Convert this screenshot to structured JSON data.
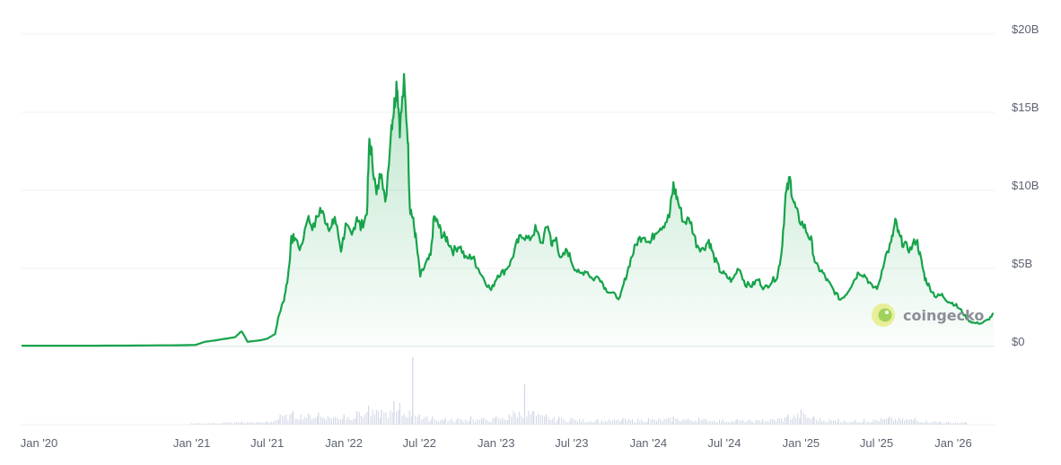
{
  "watermark": {
    "text": "coingecko",
    "icon": "coingecko-gecko-icon"
  },
  "colors": {
    "line": "#16a34a",
    "area_top": "#16a34a",
    "volume": "#cfd6e4",
    "grid": "#eef0f3",
    "axis": "#dfe3e8"
  },
  "chart_data": [
    {
      "type": "area",
      "title": "",
      "xlabel": "",
      "ylabel": "",
      "x_axis": "date",
      "xlim": [
        "2019-11-20",
        "2026-04-10"
      ],
      "ylim": [
        0,
        20000000000
      ],
      "grid": true,
      "y_ticks": [
        {
          "value": 0,
          "label": "$0"
        },
        {
          "value": 5000000000,
          "label": "$5B"
        },
        {
          "value": 10000000000,
          "label": "$10B"
        },
        {
          "value": 15000000000,
          "label": "$15B"
        },
        {
          "value": 20000000000,
          "label": "$20B"
        }
      ],
      "x_ticks": [
        {
          "value": "2020-01-01",
          "label": "Jan '20"
        },
        {
          "value": "2021-01-01",
          "label": "Jan '21"
        },
        {
          "value": "2021-07-01",
          "label": "Jul '21"
        },
        {
          "value": "2022-01-01",
          "label": "Jan '22"
        },
        {
          "value": "2022-07-01",
          "label": "Jul '22"
        },
        {
          "value": "2023-01-01",
          "label": "Jan '23"
        },
        {
          "value": "2023-07-01",
          "label": "Jul '23"
        },
        {
          "value": "2024-01-01",
          "label": "Jan '24"
        },
        {
          "value": "2024-07-01",
          "label": "Jul '24"
        },
        {
          "value": "2025-01-01",
          "label": "Jan '25"
        },
        {
          "value": "2025-07-01",
          "label": "Jul '25"
        },
        {
          "value": "2026-01-01",
          "label": "Jan '26"
        }
      ],
      "series": [
        {
          "points": [
            [
              "2019-11-20",
              50000000
            ],
            [
              "2020-04-01",
              50000000
            ],
            [
              "2020-08-01",
              60000000
            ],
            [
              "2020-12-01",
              80000000
            ],
            [
              "2021-01-10",
              100000000
            ],
            [
              "2021-02-01",
              300000000
            ],
            [
              "2021-03-01",
              400000000
            ],
            [
              "2021-04-15",
              600000000
            ],
            [
              "2021-05-01",
              1000000000
            ],
            [
              "2021-05-15",
              300000000
            ],
            [
              "2021-06-15",
              400000000
            ],
            [
              "2021-07-01",
              500000000
            ],
            [
              "2021-07-20",
              800000000
            ],
            [
              "2021-07-28",
              1900000000
            ],
            [
              "2021-08-10",
              3000000000
            ],
            [
              "2021-08-20",
              4500000000
            ],
            [
              "2021-08-28",
              6800000000
            ],
            [
              "2021-09-05",
              7000000000
            ],
            [
              "2021-09-20",
              6200000000
            ],
            [
              "2021-10-05",
              8300000000
            ],
            [
              "2021-10-20",
              7600000000
            ],
            [
              "2021-11-05",
              8800000000
            ],
            [
              "2021-11-20",
              8000000000
            ],
            [
              "2021-12-01",
              7500000000
            ],
            [
              "2021-12-10",
              8300000000
            ],
            [
              "2021-12-25",
              6200000000
            ],
            [
              "2022-01-05",
              7700000000
            ],
            [
              "2022-01-20",
              7000000000
            ],
            [
              "2022-02-01",
              8400000000
            ],
            [
              "2022-02-10",
              7600000000
            ],
            [
              "2022-02-25",
              8500000000
            ],
            [
              "2022-03-03",
              13200000000
            ],
            [
              "2022-03-10",
              12000000000
            ],
            [
              "2022-03-20",
              9600000000
            ],
            [
              "2022-04-01",
              11500000000
            ],
            [
              "2022-04-10",
              9000000000
            ],
            [
              "2022-04-25",
              14200000000
            ],
            [
              "2022-05-02",
              15500000000
            ],
            [
              "2022-05-08",
              17100000000
            ],
            [
              "2022-05-15",
              14000000000
            ],
            [
              "2022-05-25",
              16800000000
            ],
            [
              "2022-06-03",
              13500000000
            ],
            [
              "2022-06-08",
              9000000000
            ],
            [
              "2022-06-15",
              8200000000
            ],
            [
              "2022-06-22",
              7000000000
            ],
            [
              "2022-07-03",
              4500000000
            ],
            [
              "2022-07-15",
              5200000000
            ],
            [
              "2022-07-28",
              5800000000
            ],
            [
              "2022-08-05",
              8300000000
            ],
            [
              "2022-08-15",
              7800000000
            ],
            [
              "2022-08-25",
              7100000000
            ],
            [
              "2022-09-05",
              6900000000
            ],
            [
              "2022-09-20",
              6100000000
            ],
            [
              "2022-10-05",
              6500000000
            ],
            [
              "2022-10-20",
              5600000000
            ],
            [
              "2022-11-05",
              5800000000
            ],
            [
              "2022-11-15",
              5200000000
            ],
            [
              "2022-12-05",
              4200000000
            ],
            [
              "2022-12-20",
              3600000000
            ],
            [
              "2023-01-05",
              4600000000
            ],
            [
              "2023-01-20",
              4800000000
            ],
            [
              "2023-02-05",
              5400000000
            ],
            [
              "2023-02-20",
              6600000000
            ],
            [
              "2023-03-05",
              7200000000
            ],
            [
              "2023-03-20",
              6800000000
            ],
            [
              "2023-04-05",
              7500000000
            ],
            [
              "2023-04-20",
              6600000000
            ],
            [
              "2023-05-05",
              7800000000
            ],
            [
              "2023-05-15",
              6500000000
            ],
            [
              "2023-05-25",
              6900000000
            ],
            [
              "2023-06-05",
              5500000000
            ],
            [
              "2023-06-20",
              6200000000
            ],
            [
              "2023-07-05",
              5200000000
            ],
            [
              "2023-07-20",
              4600000000
            ],
            [
              "2023-08-05",
              4900000000
            ],
            [
              "2023-08-20",
              4300000000
            ],
            [
              "2023-09-05",
              4500000000
            ],
            [
              "2023-09-20",
              3700000000
            ],
            [
              "2023-10-05",
              3400000000
            ],
            [
              "2023-10-25",
              3100000000
            ],
            [
              "2023-11-05",
              4200000000
            ],
            [
              "2023-11-20",
              5600000000
            ],
            [
              "2023-12-05",
              6700000000
            ],
            [
              "2023-12-20",
              7200000000
            ],
            [
              "2024-01-05",
              6600000000
            ],
            [
              "2024-01-20",
              7500000000
            ],
            [
              "2024-02-05",
              7800000000
            ],
            [
              "2024-02-20",
              8300000000
            ],
            [
              "2024-03-01",
              10300000000
            ],
            [
              "2024-03-10",
              9500000000
            ],
            [
              "2024-03-25",
              8000000000
            ],
            [
              "2024-04-10",
              8100000000
            ],
            [
              "2024-04-25",
              6600000000
            ],
            [
              "2024-05-10",
              6200000000
            ],
            [
              "2024-05-25",
              6800000000
            ],
            [
              "2024-06-05",
              5800000000
            ],
            [
              "2024-06-20",
              4900000000
            ],
            [
              "2024-07-05",
              4500000000
            ],
            [
              "2024-07-20",
              4200000000
            ],
            [
              "2024-08-05",
              5100000000
            ],
            [
              "2024-08-20",
              4000000000
            ],
            [
              "2024-09-05",
              3900000000
            ],
            [
              "2024-09-20",
              4300000000
            ],
            [
              "2024-10-05",
              3700000000
            ],
            [
              "2024-10-20",
              4100000000
            ],
            [
              "2024-11-05",
              4500000000
            ],
            [
              "2024-11-15",
              6000000000
            ],
            [
              "2024-11-25",
              9600000000
            ],
            [
              "2024-12-05",
              10700000000
            ],
            [
              "2024-12-15",
              9200000000
            ],
            [
              "2024-12-25",
              8300000000
            ],
            [
              "2025-01-10",
              7600000000
            ],
            [
              "2025-01-25",
              6800000000
            ],
            [
              "2025-02-05",
              5200000000
            ],
            [
              "2025-02-20",
              4800000000
            ],
            [
              "2025-03-05",
              4200000000
            ],
            [
              "2025-03-20",
              3600000000
            ],
            [
              "2025-04-05",
              3000000000
            ],
            [
              "2025-04-20",
              3400000000
            ],
            [
              "2025-05-05",
              4100000000
            ],
            [
              "2025-05-20",
              4800000000
            ],
            [
              "2025-06-05",
              4500000000
            ],
            [
              "2025-06-20",
              3800000000
            ],
            [
              "2025-07-05",
              3800000000
            ],
            [
              "2025-07-20",
              5600000000
            ],
            [
              "2025-08-05",
              6600000000
            ],
            [
              "2025-08-15",
              8000000000
            ],
            [
              "2025-08-25",
              7000000000
            ],
            [
              "2025-09-05",
              6500000000
            ],
            [
              "2025-09-20",
              6200000000
            ],
            [
              "2025-10-05",
              6900000000
            ],
            [
              "2025-10-15",
              5600000000
            ],
            [
              "2025-10-25",
              4400000000
            ],
            [
              "2025-11-05",
              3800000000
            ],
            [
              "2025-11-20",
              3200000000
            ],
            [
              "2025-12-05",
              3300000000
            ],
            [
              "2025-12-20",
              2900000000
            ],
            [
              "2026-01-05",
              2700000000
            ],
            [
              "2026-01-20",
              2300000000
            ],
            [
              "2026-02-05",
              1700000000
            ],
            [
              "2026-02-20",
              1500000000
            ],
            [
              "2026-03-10",
              1500000000
            ],
            [
              "2026-03-25",
              1700000000
            ],
            [
              "2026-04-08",
              2100000000
            ]
          ]
        }
      ]
    },
    {
      "type": "bar",
      "x_axis": "date",
      "series": [
        {
          "points": [
            [
              "2021-01-01",
              0.02
            ],
            [
              "2021-05-01",
              0.05
            ],
            [
              "2021-07-01",
              0.05
            ],
            [
              "2021-08-01",
              0.15
            ],
            [
              "2021-09-01",
              0.2
            ],
            [
              "2021-11-01",
              0.18
            ],
            [
              "2022-01-01",
              0.15
            ],
            [
              "2022-02-01",
              0.2
            ],
            [
              "2022-03-01",
              0.28
            ],
            [
              "2022-04-01",
              0.22
            ],
            [
              "2022-05-01",
              0.35
            ],
            [
              "2022-05-15",
              0.32
            ],
            [
              "2022-06-15",
              1.0
            ],
            [
              "2022-07-01",
              0.15
            ],
            [
              "2022-08-01",
              0.12
            ],
            [
              "2022-09-01",
              0.1
            ],
            [
              "2022-10-01",
              0.1
            ],
            [
              "2022-11-01",
              0.12
            ],
            [
              "2022-12-01",
              0.1
            ],
            [
              "2023-01-01",
              0.12
            ],
            [
              "2023-02-01",
              0.15
            ],
            [
              "2023-03-10",
              0.6
            ],
            [
              "2023-04-01",
              0.2
            ],
            [
              "2023-05-01",
              0.15
            ],
            [
              "2023-06-01",
              0.12
            ],
            [
              "2023-07-01",
              0.1
            ],
            [
              "2023-09-01",
              0.08
            ],
            [
              "2023-11-01",
              0.1
            ],
            [
              "2024-01-01",
              0.1
            ],
            [
              "2024-03-01",
              0.12
            ],
            [
              "2024-05-01",
              0.1
            ],
            [
              "2024-08-01",
              0.08
            ],
            [
              "2024-10-01",
              0.08
            ],
            [
              "2024-12-01",
              0.15
            ],
            [
              "2025-01-01",
              0.22
            ],
            [
              "2025-02-01",
              0.12
            ],
            [
              "2025-04-01",
              0.08
            ],
            [
              "2025-06-01",
              0.08
            ],
            [
              "2025-08-01",
              0.12
            ],
            [
              "2025-10-01",
              0.1
            ],
            [
              "2025-12-01",
              0.05
            ],
            [
              "2026-02-01",
              0.04
            ]
          ]
        }
      ]
    }
  ]
}
